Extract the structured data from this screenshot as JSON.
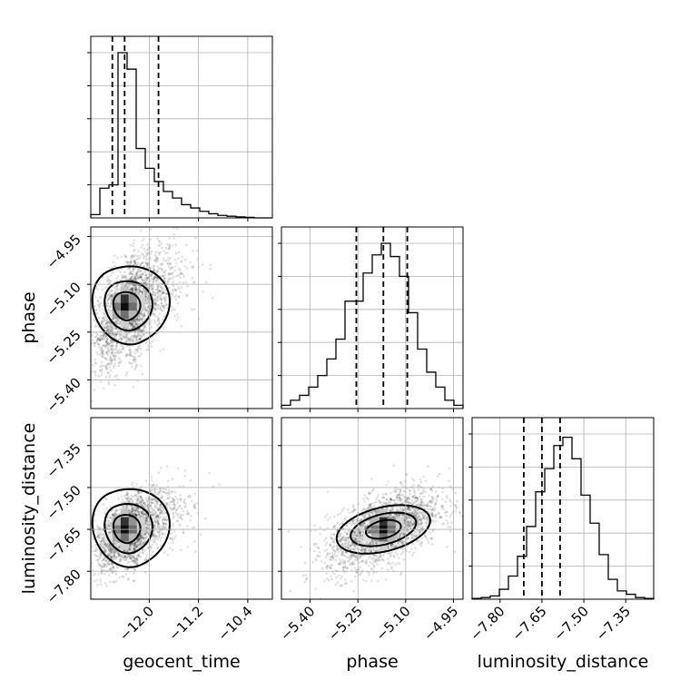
{
  "chart_data": {
    "type": "corner",
    "parameters": [
      "geocent_time",
      "phase",
      "luminosity_distance"
    ],
    "ranges": {
      "geocent_time": [
        -12.95,
        -10.0
      ],
      "phase": [
        -5.49,
        -4.92
      ],
      "luminosity_distance": [
        -7.9,
        -7.25
      ]
    },
    "ticks": {
      "geocent_time": [
        "−12.0",
        "−11.2",
        "−10.4"
      ],
      "phase": [
        "−5.40",
        "−5.25",
        "−5.10",
        "−4.95"
      ],
      "luminosity_distance": [
        "−7.80",
        "−7.65",
        "−7.50",
        "−7.35"
      ]
    },
    "tick_values": {
      "geocent_time": [
        -12.0,
        -11.2,
        -10.4
      ],
      "phase": [
        -5.4,
        -5.25,
        -5.1,
        -4.95
      ],
      "luminosity_distance": [
        -7.8,
        -7.65,
        -7.5,
        -7.35
      ]
    },
    "quantiles": {
      "geocent_time": [
        -12.6,
        -12.4,
        -11.85
      ],
      "phase": [
        -5.255,
        -5.17,
        -5.095
      ],
      "luminosity_distance": [
        -7.715,
        -7.65,
        -7.585
      ]
    },
    "histograms": {
      "geocent_time": [
        0.02,
        0.18,
        0.2,
        1.0,
        0.9,
        0.42,
        0.3,
        0.22,
        0.16,
        0.12,
        0.08,
        0.06,
        0.04,
        0.025,
        0.015,
        0.01,
        0.006,
        0.003,
        0.0,
        0.0
      ],
      "phase": [
        0.02,
        0.05,
        0.08,
        0.13,
        0.2,
        0.3,
        0.42,
        0.65,
        0.65,
        0.82,
        0.93,
        1.0,
        0.92,
        0.8,
        0.58,
        0.36,
        0.22,
        0.13,
        0.05,
        0.02
      ],
      "luminosity_distance": [
        0.005,
        0.01,
        0.02,
        0.06,
        0.14,
        0.26,
        0.44,
        0.65,
        0.79,
        0.93,
        0.98,
        0.85,
        0.63,
        0.46,
        0.27,
        0.12,
        0.05,
        0.03,
        0.01,
        0.005
      ]
    },
    "grid": true
  }
}
